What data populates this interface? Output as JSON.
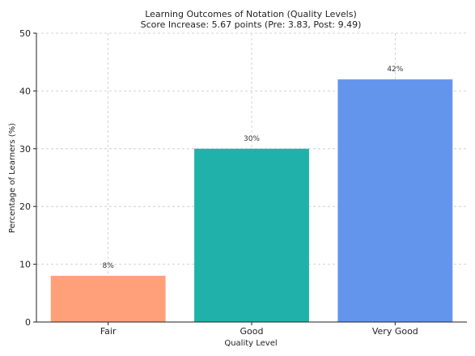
{
  "chart_data": {
    "type": "bar",
    "title": "Learning Outcomes of Notation (Quality Levels)",
    "subtitle": "Score Increase: 5.67 points (Pre: 3.83, Post: 9.49)",
    "xlabel": "Quality Level",
    "ylabel": "Percentage of Learners (%)",
    "categories": [
      "Fair",
      "Good",
      "Very Good"
    ],
    "values": [
      8,
      30,
      42
    ],
    "data_labels": [
      "8%",
      "30%",
      "42%"
    ],
    "colors": [
      "#FFA07A",
      "#20B2AA",
      "#6495ED"
    ],
    "ylim": [
      0,
      50
    ],
    "yticks": [
      0,
      10,
      20,
      30,
      40,
      50
    ],
    "grid": true,
    "legend": "none"
  }
}
